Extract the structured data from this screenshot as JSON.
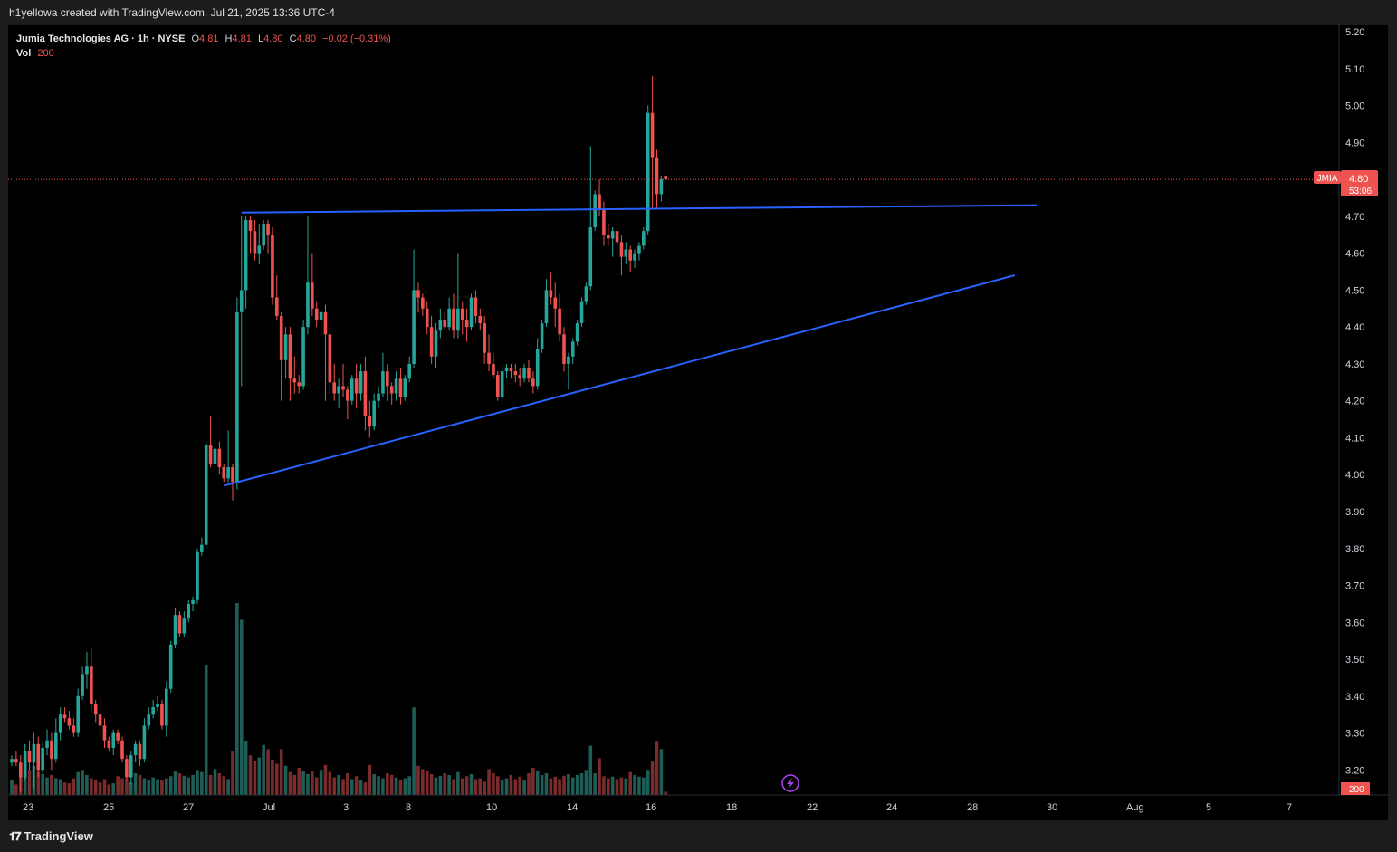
{
  "header": {
    "credit": "h1yellowa created with TradingView.com, Jul 21, 2025 13:36 UTC-4"
  },
  "legend": {
    "symbol_line": "Jumia Technologies AG · 1h · NYSE",
    "open_label": "O",
    "open": "4.81",
    "high_label": "H",
    "high": "4.81",
    "low_label": "L",
    "low": "4.80",
    "close_label": "C",
    "close": "4.80",
    "change": "−0.02 (−0.31%)",
    "vol_label": "Vol",
    "vol": "200"
  },
  "price_tag": {
    "ticker": "JMIA",
    "price": "4.80",
    "countdown": "53:06"
  },
  "volume_tag": "200",
  "footer": {
    "brand": "TradingView"
  },
  "colors": {
    "up": "#26a69a",
    "down": "#ef5350",
    "trendline": "#2962ff",
    "background": "#000000"
  },
  "icons": {
    "replay": "lightning-icon",
    "logo": "tradingview-logo-icon"
  },
  "chart_data": {
    "type": "candlestick",
    "title": "Jumia Technologies AG · 1h · NYSE",
    "interval": "1h",
    "y_ticks": [
      "5.20",
      "5.10",
      "5.00",
      "4.90",
      "4.80",
      "4.70",
      "4.60",
      "4.50",
      "4.40",
      "4.30",
      "4.20",
      "4.10",
      "4.00",
      "3.90",
      "3.80",
      "3.70",
      "3.60",
      "3.50",
      "3.40",
      "3.30",
      "3.20"
    ],
    "ylim": [
      3.12,
      5.2
    ],
    "x_ticks": [
      "23",
      "25",
      "27",
      "Jul",
      "3",
      "8",
      "10",
      "14",
      "16",
      "18",
      "22",
      "24",
      "28",
      "30",
      "Aug",
      "5",
      "7"
    ],
    "last_price": 4.8,
    "candles": [
      [
        3.22,
        3.24,
        3.21,
        3.23
      ],
      [
        3.23,
        3.25,
        3.21,
        3.22
      ],
      [
        3.22,
        3.24,
        3.14,
        3.18
      ],
      [
        3.18,
        3.27,
        3.17,
        3.25
      ],
      [
        3.25,
        3.28,
        3.2,
        3.22
      ],
      [
        3.22,
        3.3,
        3.15,
        3.27
      ],
      [
        3.27,
        3.29,
        3.18,
        3.2
      ],
      [
        3.2,
        3.28,
        3.19,
        3.26
      ],
      [
        3.26,
        3.31,
        3.24,
        3.28
      ],
      [
        3.28,
        3.3,
        3.2,
        3.23
      ],
      [
        3.23,
        3.34,
        3.22,
        3.3
      ],
      [
        3.3,
        3.37,
        3.28,
        3.35
      ],
      [
        3.35,
        3.37,
        3.33,
        3.34
      ],
      [
        3.34,
        3.36,
        3.31,
        3.32
      ],
      [
        3.32,
        3.34,
        3.29,
        3.3
      ],
      [
        3.3,
        3.42,
        3.29,
        3.4
      ],
      [
        3.4,
        3.48,
        3.39,
        3.46
      ],
      [
        3.46,
        3.52,
        3.42,
        3.48
      ],
      [
        3.48,
        3.53,
        3.36,
        3.38
      ],
      [
        3.38,
        3.39,
        3.33,
        3.35
      ],
      [
        3.35,
        3.4,
        3.29,
        3.32
      ],
      [
        3.32,
        3.34,
        3.26,
        3.28
      ],
      [
        3.28,
        3.29,
        3.25,
        3.26
      ],
      [
        3.26,
        3.31,
        3.24,
        3.3
      ],
      [
        3.3,
        3.31,
        3.27,
        3.28
      ],
      [
        3.28,
        3.29,
        3.22,
        3.23
      ],
      [
        3.23,
        3.24,
        3.17,
        3.18
      ],
      [
        3.18,
        3.25,
        3.16,
        3.24
      ],
      [
        3.24,
        3.28,
        3.22,
        3.27
      ],
      [
        3.27,
        3.28,
        3.21,
        3.23
      ],
      [
        3.23,
        3.34,
        3.22,
        3.32
      ],
      [
        3.32,
        3.37,
        3.31,
        3.35
      ],
      [
        3.35,
        3.39,
        3.34,
        3.37
      ],
      [
        3.37,
        3.4,
        3.36,
        3.38
      ],
      [
        3.38,
        3.39,
        3.31,
        3.32
      ],
      [
        3.32,
        3.44,
        3.29,
        3.42
      ],
      [
        3.42,
        3.55,
        3.41,
        3.54
      ],
      [
        3.54,
        3.64,
        3.53,
        3.62
      ],
      [
        3.62,
        3.63,
        3.56,
        3.57
      ],
      [
        3.57,
        3.63,
        3.56,
        3.61
      ],
      [
        3.61,
        3.66,
        3.6,
        3.65
      ],
      [
        3.65,
        3.67,
        3.63,
        3.66
      ],
      [
        3.66,
        3.8,
        3.65,
        3.79
      ],
      [
        3.79,
        3.83,
        3.78,
        3.81
      ],
      [
        3.81,
        4.09,
        3.8,
        4.08
      ],
      [
        4.08,
        4.16,
        4.02,
        4.03
      ],
      [
        4.03,
        4.14,
        3.97,
        4.07
      ],
      [
        4.07,
        4.09,
        4.0,
        4.02
      ],
      [
        4.02,
        4.03,
        3.98,
        3.99
      ],
      [
        3.99,
        4.12,
        3.98,
        4.02
      ],
      [
        4.02,
        4.03,
        3.93,
        3.98
      ],
      [
        3.98,
        4.48,
        3.96,
        4.44
      ],
      [
        4.44,
        4.7,
        4.24,
        4.5
      ],
      [
        4.5,
        4.7,
        4.45,
        4.69
      ],
      [
        4.69,
        4.7,
        4.6,
        4.66
      ],
      [
        4.66,
        4.69,
        4.58,
        4.6
      ],
      [
        4.6,
        4.68,
        4.57,
        4.62
      ],
      [
        4.62,
        4.69,
        4.61,
        4.68
      ],
      [
        4.68,
        4.69,
        4.6,
        4.65
      ],
      [
        4.65,
        4.67,
        4.46,
        4.48
      ],
      [
        4.48,
        4.54,
        4.42,
        4.43
      ],
      [
        4.43,
        4.44,
        4.2,
        4.31
      ],
      [
        4.31,
        4.4,
        4.26,
        4.38
      ],
      [
        4.38,
        4.4,
        4.2,
        4.26
      ],
      [
        4.26,
        4.32,
        4.22,
        4.25
      ],
      [
        4.25,
        4.27,
        4.22,
        4.24
      ],
      [
        4.24,
        4.42,
        4.23,
        4.4
      ],
      [
        4.4,
        4.7,
        4.38,
        4.52
      ],
      [
        4.52,
        4.6,
        4.43,
        4.45
      ],
      [
        4.45,
        4.47,
        4.4,
        4.42
      ],
      [
        4.42,
        4.45,
        4.38,
        4.44
      ],
      [
        4.44,
        4.46,
        4.2,
        4.38
      ],
      [
        4.38,
        4.4,
        4.22,
        4.25
      ],
      [
        4.25,
        4.3,
        4.2,
        4.22
      ],
      [
        4.22,
        4.26,
        4.18,
        4.24
      ],
      [
        4.24,
        4.3,
        4.21,
        4.23
      ],
      [
        4.23,
        4.24,
        4.15,
        4.2
      ],
      [
        4.2,
        4.27,
        4.19,
        4.26
      ],
      [
        4.26,
        4.3,
        4.18,
        4.22
      ],
      [
        4.22,
        4.3,
        4.2,
        4.28
      ],
      [
        4.28,
        4.32,
        4.12,
        4.16
      ],
      [
        4.16,
        4.2,
        4.1,
        4.13
      ],
      [
        4.13,
        4.22,
        4.12,
        4.2
      ],
      [
        4.2,
        4.24,
        4.18,
        4.22
      ],
      [
        4.22,
        4.33,
        4.21,
        4.28
      ],
      [
        4.28,
        4.3,
        4.2,
        4.24
      ],
      [
        4.24,
        4.25,
        4.19,
        4.22
      ],
      [
        4.22,
        4.28,
        4.2,
        4.26
      ],
      [
        4.26,
        4.29,
        4.19,
        4.21
      ],
      [
        4.21,
        4.27,
        4.2,
        4.26
      ],
      [
        4.26,
        4.32,
        4.25,
        4.3
      ],
      [
        4.3,
        4.61,
        4.29,
        4.5
      ],
      [
        4.5,
        4.52,
        4.44,
        4.48
      ],
      [
        4.48,
        4.49,
        4.43,
        4.45
      ],
      [
        4.45,
        4.47,
        4.38,
        4.4
      ],
      [
        4.4,
        4.43,
        4.3,
        4.32
      ],
      [
        4.32,
        4.41,
        4.29,
        4.39
      ],
      [
        4.39,
        4.45,
        4.37,
        4.42
      ],
      [
        4.42,
        4.44,
        4.39,
        4.4
      ],
      [
        4.4,
        4.48,
        4.39,
        4.45
      ],
      [
        4.45,
        4.49,
        4.37,
        4.39
      ],
      [
        4.39,
        4.6,
        4.37,
        4.45
      ],
      [
        4.45,
        4.47,
        4.38,
        4.42
      ],
      [
        4.42,
        4.45,
        4.36,
        4.4
      ],
      [
        4.4,
        4.49,
        4.39,
        4.48
      ],
      [
        4.48,
        4.5,
        4.41,
        4.43
      ],
      [
        4.43,
        4.45,
        4.39,
        4.41
      ],
      [
        4.41,
        4.43,
        4.3,
        4.33
      ],
      [
        4.33,
        4.38,
        4.28,
        4.3
      ],
      [
        4.3,
        4.33,
        4.26,
        4.27
      ],
      [
        4.27,
        4.28,
        4.2,
        4.21
      ],
      [
        4.21,
        4.3,
        4.2,
        4.28
      ],
      [
        4.28,
        4.3,
        4.26,
        4.29
      ],
      [
        4.29,
        4.3,
        4.26,
        4.28
      ],
      [
        4.28,
        4.3,
        4.25,
        4.27
      ],
      [
        4.27,
        4.29,
        4.24,
        4.26
      ],
      [
        4.26,
        4.3,
        4.25,
        4.29
      ],
      [
        4.29,
        4.31,
        4.25,
        4.26
      ],
      [
        4.26,
        4.28,
        4.22,
        4.24
      ],
      [
        4.24,
        4.37,
        4.23,
        4.34
      ],
      [
        4.34,
        4.42,
        4.33,
        4.41
      ],
      [
        4.41,
        4.53,
        4.4,
        4.5
      ],
      [
        4.5,
        4.55,
        4.46,
        4.48
      ],
      [
        4.48,
        4.52,
        4.4,
        4.45
      ],
      [
        4.45,
        4.49,
        4.36,
        4.38
      ],
      [
        4.38,
        4.4,
        4.28,
        4.3
      ],
      [
        4.3,
        4.33,
        4.23,
        4.32
      ],
      [
        4.32,
        4.37,
        4.3,
        4.36
      ],
      [
        4.36,
        4.42,
        4.35,
        4.41
      ],
      [
        4.41,
        4.48,
        4.4,
        4.47
      ],
      [
        4.47,
        4.52,
        4.46,
        4.51
      ],
      [
        4.51,
        4.89,
        4.5,
        4.67
      ],
      [
        4.67,
        4.77,
        4.66,
        4.76
      ],
      [
        4.76,
        4.8,
        4.7,
        4.72
      ],
      [
        4.72,
        4.74,
        4.62,
        4.65
      ],
      [
        4.65,
        4.68,
        4.62,
        4.64
      ],
      [
        4.64,
        4.67,
        4.59,
        4.66
      ],
      [
        4.66,
        4.7,
        4.6,
        4.63
      ],
      [
        4.63,
        4.65,
        4.54,
        4.59
      ],
      [
        4.59,
        4.63,
        4.57,
        4.61
      ],
      [
        4.61,
        4.62,
        4.55,
        4.58
      ],
      [
        4.58,
        4.61,
        4.56,
        4.6
      ],
      [
        4.6,
        4.63,
        4.58,
        4.62
      ],
      [
        4.62,
        4.67,
        4.61,
        4.66
      ],
      [
        4.66,
        5.0,
        4.65,
        4.98
      ],
      [
        4.98,
        5.08,
        4.72,
        4.86
      ],
      [
        4.86,
        4.88,
        4.72,
        4.76
      ],
      [
        4.76,
        4.81,
        4.74,
        4.8
      ],
      [
        4.81,
        4.81,
        4.8,
        4.8
      ]
    ],
    "volume": [
      35,
      25,
      45,
      90,
      60,
      70,
      55,
      50,
      42,
      48,
      40,
      38,
      30,
      28,
      40,
      55,
      60,
      48,
      40,
      35,
      30,
      38,
      25,
      28,
      45,
      40,
      38,
      30,
      52,
      48,
      40,
      35,
      42,
      38,
      35,
      40,
      45,
      58,
      52,
      46,
      42,
      48,
      60,
      55,
      310,
      48,
      62,
      52,
      45,
      38,
      105,
      460,
      420,
      130,
      95,
      82,
      90,
      120,
      110,
      85,
      75,
      110,
      70,
      55,
      48,
      65,
      58,
      50,
      58,
      42,
      60,
      72,
      55,
      42,
      48,
      38,
      52,
      38,
      45,
      35,
      30,
      72,
      50,
      45,
      40,
      52,
      48,
      42,
      36,
      40,
      45,
      210,
      70,
      62,
      58,
      50,
      42,
      46,
      52,
      48,
      38,
      55,
      40,
      45,
      50,
      38,
      40,
      32,
      62,
      52,
      45,
      35,
      40,
      48,
      38,
      44,
      36,
      52,
      65,
      58,
      48,
      52,
      40,
      44,
      38,
      46,
      50,
      42,
      48,
      52,
      60,
      118,
      52,
      88,
      45,
      40,
      44,
      38,
      42,
      40,
      55,
      48,
      44,
      42,
      60,
      80,
      130,
      110,
      8
    ],
    "trendlines": [
      {
        "name": "resistance",
        "start": {
          "bar": 52,
          "price": 4.71
        },
        "end": {
          "bar": 232,
          "price": 4.73
        }
      },
      {
        "name": "support",
        "start": {
          "bar": 48,
          "price": 3.97
        },
        "end": {
          "bar": 227,
          "price": 4.54
        }
      }
    ]
  }
}
